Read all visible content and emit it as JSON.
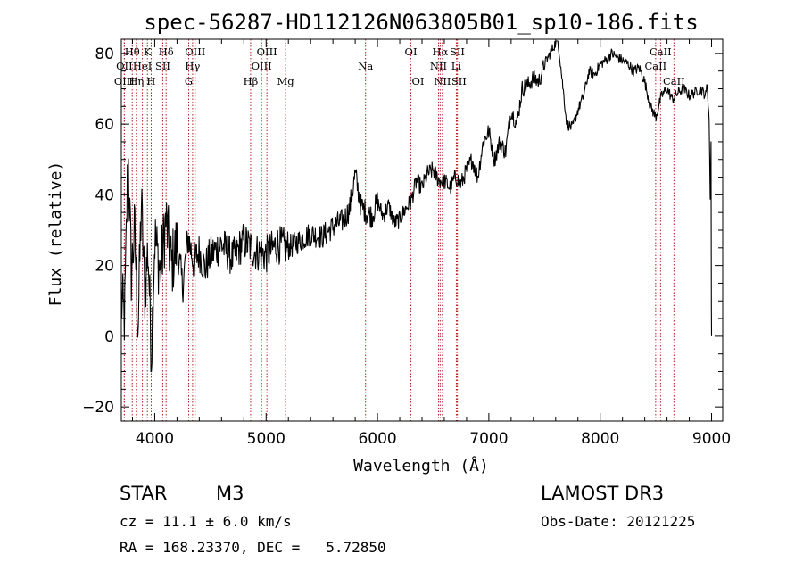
{
  "chart_data": {
    "type": "line",
    "title": "spec-56287-HD112126N063805B01_sp10-186.fits",
    "xlabel": "Wavelength (Å)",
    "ylabel": "Flux (relative)",
    "xlim": [
      3700,
      9100
    ],
    "ylim": [
      -24,
      84
    ],
    "xticks": [
      4000,
      5000,
      6000,
      7000,
      8000,
      9000
    ],
    "yticks": [
      -20,
      0,
      20,
      40,
      60,
      80
    ],
    "xtick_labels": [
      "4000",
      "5000",
      "6000",
      "7000",
      "8000",
      "9000"
    ],
    "ytick_labels": [
      "−20",
      "0",
      "20",
      "40",
      "60",
      "80"
    ],
    "series": [
      {
        "name": "spectrum",
        "x": [
          3700,
          3730,
          3760,
          3790,
          3820,
          3850,
          3880,
          3910,
          3940,
          3970,
          4000,
          4050,
          4100,
          4150,
          4200,
          4250,
          4300,
          4350,
          4400,
          4450,
          4500,
          4600,
          4700,
          4800,
          4900,
          5000,
          5100,
          5200,
          5300,
          5400,
          5500,
          5600,
          5700,
          5750,
          5800,
          5850,
          5900,
          5950,
          6000,
          6050,
          6100,
          6150,
          6200,
          6250,
          6300,
          6350,
          6400,
          6450,
          6500,
          6550,
          6600,
          6650,
          6700,
          6750,
          6800,
          6850,
          6900,
          6950,
          7000,
          7050,
          7100,
          7150,
          7200,
          7250,
          7300,
          7350,
          7400,
          7450,
          7500,
          7550,
          7600,
          7620,
          7650,
          7700,
          7750,
          7800,
          7850,
          7900,
          7950,
          8000,
          8050,
          8100,
          8150,
          8200,
          8250,
          8300,
          8350,
          8400,
          8450,
          8500,
          8550,
          8600,
          8650,
          8700,
          8750,
          8800,
          8850,
          8900,
          8950,
          8960,
          8980,
          9000
        ],
        "y": [
          10,
          5,
          52,
          18,
          30,
          2,
          38,
          12,
          25,
          -5,
          28,
          18,
          33,
          20,
          26,
          14,
          28,
          21,
          24,
          19,
          23,
          26,
          22,
          27,
          24,
          23,
          26,
          25,
          27,
          29,
          28,
          31,
          33,
          36,
          46,
          37,
          35,
          34,
          38,
          34,
          37,
          32,
          33,
          36,
          38,
          44,
          42,
          46,
          47,
          44,
          44,
          42,
          45,
          43,
          47,
          50,
          45,
          55,
          58,
          50,
          55,
          52,
          64,
          60,
          70,
          71,
          73,
          72,
          77,
          80,
          83,
          84,
          75,
          60,
          59,
          64,
          68,
          75,
          74,
          77,
          78,
          80,
          79,
          78,
          77,
          75,
          76,
          72,
          65,
          62,
          68,
          70,
          67,
          69,
          70,
          68,
          69,
          70,
          68,
          72,
          60,
          0
        ]
      }
    ],
    "spectral_lines": [
      {
        "label": "Hθ",
        "x": 3798,
        "row": 0
      },
      {
        "label": "K",
        "x": 3934,
        "row": 0
      },
      {
        "label": "Hδ",
        "x": 4102,
        "row": 0
      },
      {
        "label": "OIII",
        "x": 4363,
        "row": 0
      },
      {
        "label": "OIII",
        "x": 5007,
        "row": 0
      },
      {
        "label": "OI",
        "x": 6300,
        "row": 0
      },
      {
        "label": "Hα",
        "x": 6563,
        "row": 0
      },
      {
        "label": "SII",
        "x": 6716,
        "row": 0
      },
      {
        "label": "CaII",
        "x": 8542,
        "row": 0
      },
      {
        "label": "OII",
        "x": 3727,
        "row": 1
      },
      {
        "label": "HeI",
        "x": 3889,
        "row": 1
      },
      {
        "label": "SII",
        "x": 4072,
        "row": 1
      },
      {
        "label": "Hγ",
        "x": 4340,
        "row": 1
      },
      {
        "label": "OIII",
        "x": 4959,
        "row": 1
      },
      {
        "label": "Na",
        "x": 5893,
        "row": 1
      },
      {
        "label": "NII",
        "x": 6548,
        "row": 1
      },
      {
        "label": "Li",
        "x": 6708,
        "row": 1
      },
      {
        "label": "CaII",
        "x": 8498,
        "row": 1
      },
      {
        "label": "OIII",
        "x": 3727,
        "row": 2
      },
      {
        "label": "Hη",
        "x": 3835,
        "row": 2
      },
      {
        "label": "H",
        "x": 3968,
        "row": 2
      },
      {
        "label": "G",
        "x": 4305,
        "row": 2
      },
      {
        "label": "Hβ",
        "x": 4861,
        "row": 2
      },
      {
        "label": "Mg",
        "x": 5175,
        "row": 2
      },
      {
        "label": "OI",
        "x": 6364,
        "row": 2
      },
      {
        "label": "NII",
        "x": 6583,
        "row": 2
      },
      {
        "label": "SII",
        "x": 6731,
        "row": 2
      },
      {
        "label": "CaII",
        "x": 8662,
        "row": 2
      }
    ],
    "line_color": "#b22222"
  },
  "info": {
    "object_class": "STAR",
    "subclass": "M3",
    "survey": "LAMOST DR3",
    "cz": "cz = 11.1 ± 6.0 km/s",
    "obs_date": "Obs-Date: 20121225",
    "coords": "RA = 168.23370, DEC =   5.72850"
  }
}
